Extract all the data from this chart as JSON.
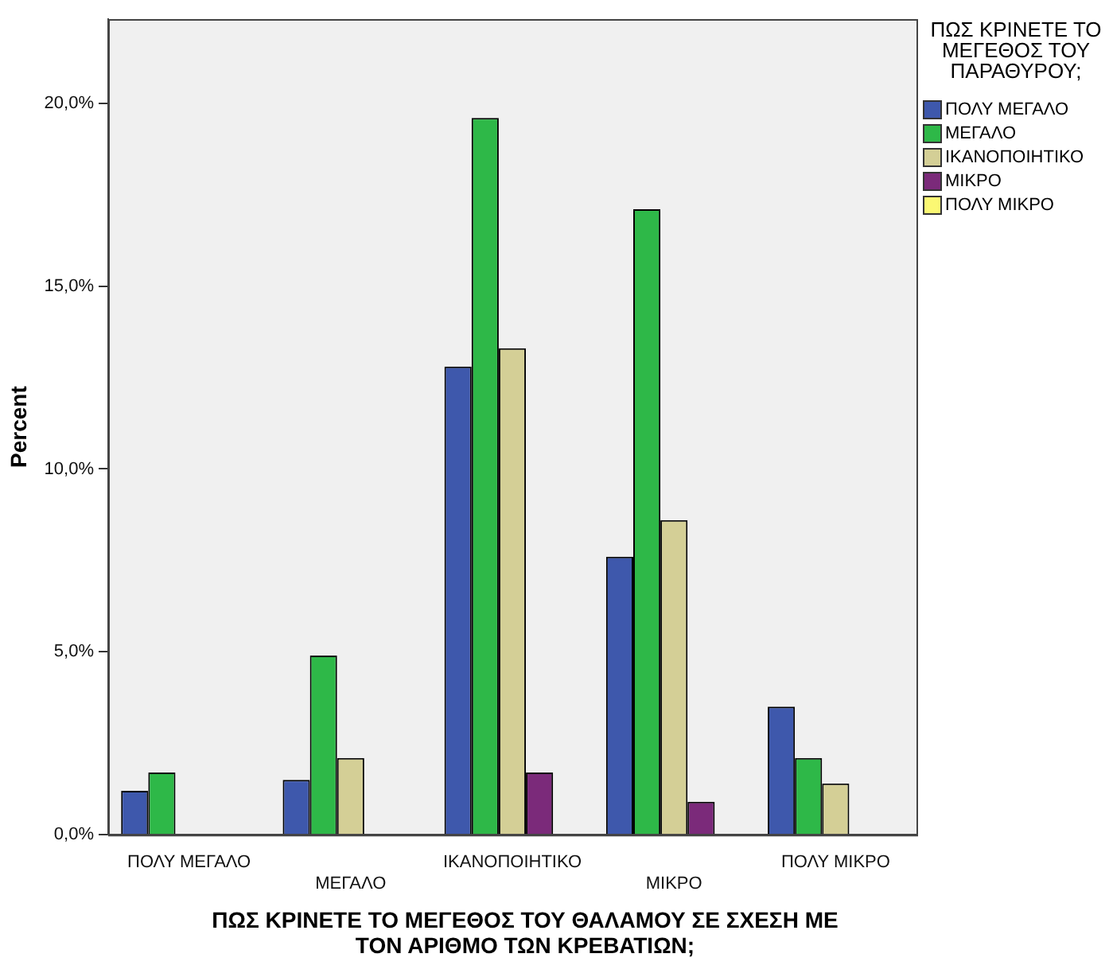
{
  "chart_data": {
    "type": "bar",
    "xlabel": "ΠΩΣ ΚΡΙΝΕΤΕ ΤΟ ΜΕΓΕΘΟΣ ΤΟΥ ΘΑΛΑΜΟΥ ΣΕ ΣΧΕΣΗ ΜΕ ΤΟΝ ΑΡΙΘΜΟ ΤΩΝ ΚΡΕΒΑΤΙΩΝ;",
    "ylabel": "Percent",
    "legend_title": "ΠΩΣ ΚΡΙΝΕΤΕ ΤΟ ΜΕΓΕΘΟΣ ΤΟΥ ΠΑΡΑΘΥΡΟΥ;",
    "categories": [
      "ΠΟΛΥ ΜΕΓΑΛΟ",
      "ΜΕΓΑΛΟ",
      "ΙΚΑΝΟΠΟΙΗΤΙΚΟ",
      "ΜΙΚΡΟ",
      "ΠΟΛΥ ΜΙΚΡΟ"
    ],
    "series": [
      {
        "name": "ΠΟΛΥ ΜΕΓΑΛΟ",
        "color": "#3e58ac",
        "values": [
          1.2,
          1.5,
          12.8,
          7.6,
          3.5
        ]
      },
      {
        "name": "ΜΕΓΑΛΟ",
        "color": "#2eb848",
        "values": [
          1.7,
          4.9,
          19.6,
          17.1,
          2.1
        ]
      },
      {
        "name": "ΙΚΑΝΟΠΟΙΗΤΙΚΟ",
        "color": "#d4cf96",
        "values": [
          0,
          2.1,
          13.3,
          8.6,
          1.4
        ]
      },
      {
        "name": "ΜΙΚΡΟ",
        "color": "#7b2a7a",
        "values": [
          0,
          0,
          1.7,
          0.9,
          0
        ]
      },
      {
        "name": "ΠΟΛΥ ΜΙΚΡΟ",
        "color": "#fbf873",
        "values": [
          0,
          0,
          0,
          0,
          0
        ]
      }
    ],
    "ylim": [
      0,
      22.3
    ],
    "yticks": [
      {
        "value": 0,
        "label": "0,0%"
      },
      {
        "value": 5,
        "label": "5,0%"
      },
      {
        "value": 10,
        "label": "10,0%"
      },
      {
        "value": 15,
        "label": "15,0%"
      },
      {
        "value": 20,
        "label": "20,0%"
      }
    ],
    "grid": false,
    "legend": "right"
  }
}
